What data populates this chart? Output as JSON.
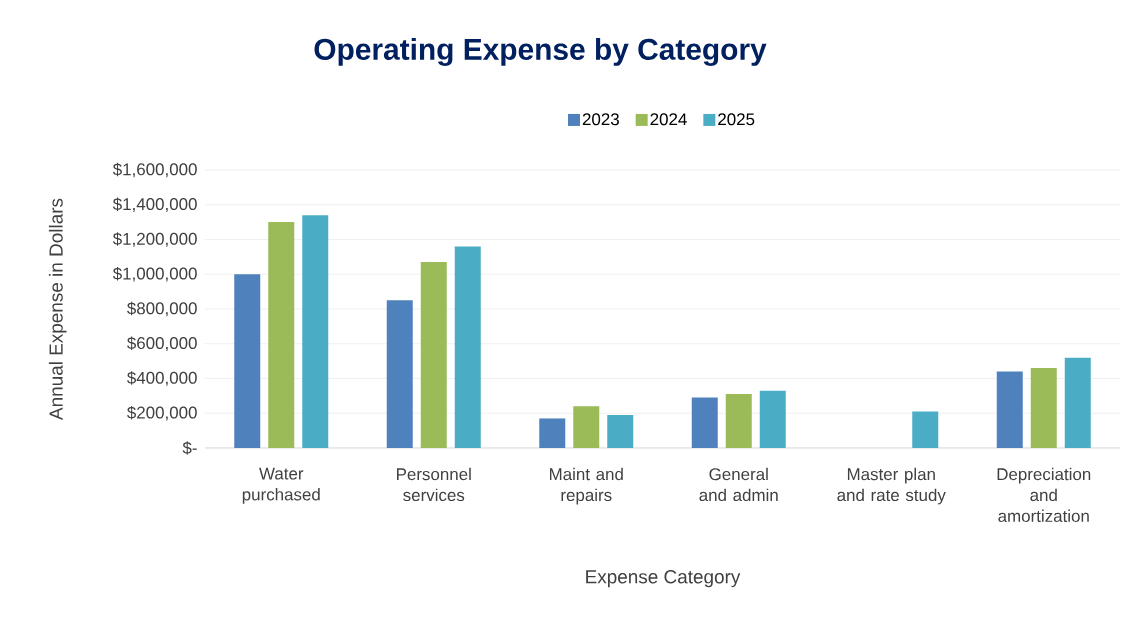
{
  "chart_data": {
    "type": "bar",
    "title": "Operating Expense by Category",
    "xlabel": "Expense Category",
    "ylabel": "Annual Expense in Dollars",
    "categories": [
      "Water purchased",
      "Personnel services",
      "Maint and repairs",
      "General and admin",
      "Master plan and rate study",
      "Depreciation and amortization"
    ],
    "series": [
      {
        "name": "2023",
        "color": "#4f81bd",
        "values": [
          1000000,
          850000,
          170000,
          290000,
          null,
          440000
        ]
      },
      {
        "name": "2024",
        "color": "#9bbb59",
        "values": [
          1300000,
          1070000,
          240000,
          310000,
          null,
          460000
        ]
      },
      {
        "name": "2025",
        "color": "#4bacc6",
        "values": [
          1340000,
          1160000,
          190000,
          330000,
          210000,
          520000
        ]
      }
    ],
    "ylim": [
      0,
      1600000
    ],
    "yticks": [
      {
        "value": 0,
        "label": "$-"
      },
      {
        "value": 200000,
        "label": "$200,000"
      },
      {
        "value": 400000,
        "label": "$400,000"
      },
      {
        "value": 600000,
        "label": "$600,000"
      },
      {
        "value": 800000,
        "label": "$800,000"
      },
      {
        "value": 1000000,
        "label": "$1,000,000"
      },
      {
        "value": 1200000,
        "label": "$1,200,000"
      },
      {
        "value": 1400000,
        "label": "$1,400,000"
      },
      {
        "value": 1600000,
        "label": "$1,600,000"
      }
    ],
    "grid": "y",
    "legend": "top"
  }
}
